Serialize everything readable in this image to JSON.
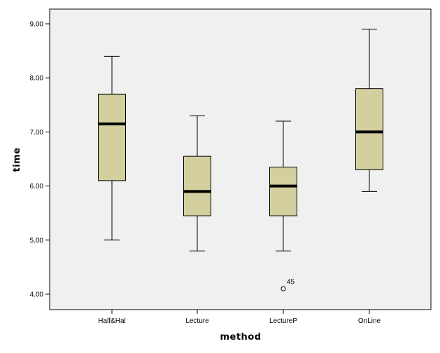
{
  "chart_data": {
    "type": "boxplot",
    "title": "",
    "xlabel": "method",
    "ylabel": "time",
    "ylim": [
      3.75,
      9.27
    ],
    "yticks": [
      4.0,
      5.0,
      6.0,
      7.0,
      8.0,
      9.0
    ],
    "ytick_labels": [
      "4.00",
      "5.00",
      "6.00",
      "7.00",
      "8.00",
      "9.00"
    ],
    "categories": [
      "Half&Hal",
      "Lecture",
      "LectureP",
      "OnLine"
    ],
    "grid": false,
    "legend": null,
    "box_color": "#d3cf9e",
    "plot_background": "#f0f0f0",
    "series": [
      {
        "name": "Half&Hal",
        "whisker_low": 5.0,
        "q1": 6.1,
        "median": 7.15,
        "q3": 7.7,
        "whisker_high": 8.4,
        "outliers": []
      },
      {
        "name": "Lecture",
        "whisker_low": 4.8,
        "q1": 5.45,
        "median": 5.9,
        "q3": 6.55,
        "whisker_high": 7.3,
        "outliers": []
      },
      {
        "name": "LectureP",
        "whisker_low": 4.8,
        "q1": 5.45,
        "median": 6.0,
        "q3": 6.35,
        "whisker_high": 7.2,
        "outliers": [
          {
            "value": 4.1,
            "label": "45"
          }
        ]
      },
      {
        "name": "OnLine",
        "whisker_low": 5.9,
        "q1": 6.3,
        "median": 7.0,
        "q3": 7.8,
        "whisker_high": 8.9,
        "outliers": []
      }
    ]
  }
}
